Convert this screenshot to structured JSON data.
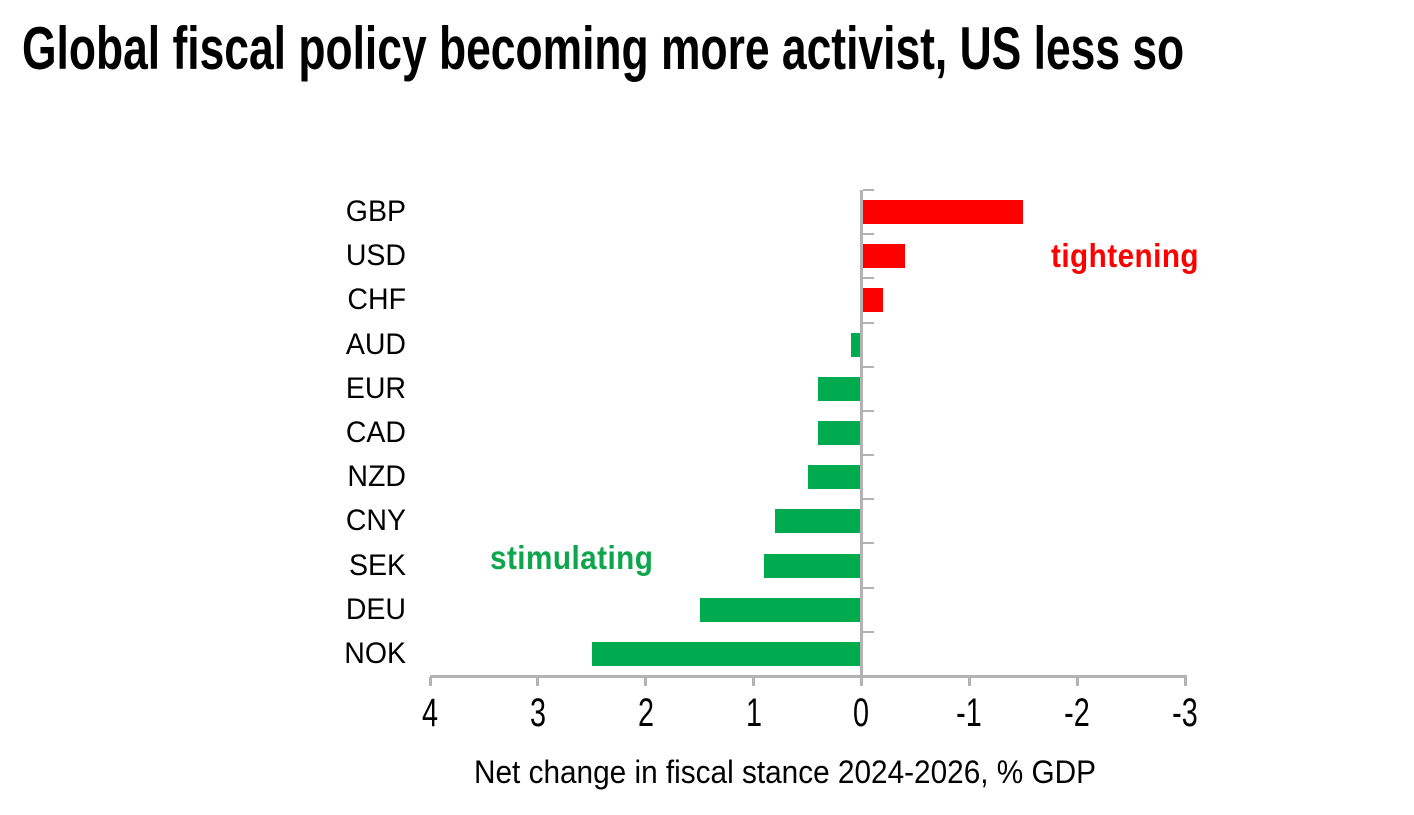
{
  "title": "Global fiscal policy becoming more activist, US less so",
  "chart_data": {
    "type": "bar",
    "orientation": "horizontal",
    "title": "Global fiscal policy becoming more activist, US less so",
    "xlabel": "Net change in fiscal stance 2024-2026, % GDP",
    "categories": [
      "GBP",
      "USD",
      "CHF",
      "AUD",
      "EUR",
      "CAD",
      "NZD",
      "CNY",
      "SEK",
      "DEU",
      "NOK"
    ],
    "values": [
      -1.5,
      -0.4,
      -0.2,
      0.1,
      0.4,
      0.4,
      0.5,
      0.8,
      0.9,
      1.5,
      2.5
    ],
    "xlim": [
      4,
      -3
    ],
    "x_ticks": [
      4,
      3,
      2,
      1,
      0,
      -1,
      -2,
      -3
    ],
    "axis_reversed": true,
    "grid": false,
    "legend": "none",
    "annotations": [
      {
        "text": "tightening",
        "color": "#fe0000"
      },
      {
        "text": "stimulating",
        "color": "#0da64c"
      }
    ],
    "colors": {
      "bar_positive": "#00ab50",
      "bar_negative": "#fe0000",
      "axis": "#b3b3b3",
      "text": "#000000",
      "background": "#ffffff"
    }
  }
}
